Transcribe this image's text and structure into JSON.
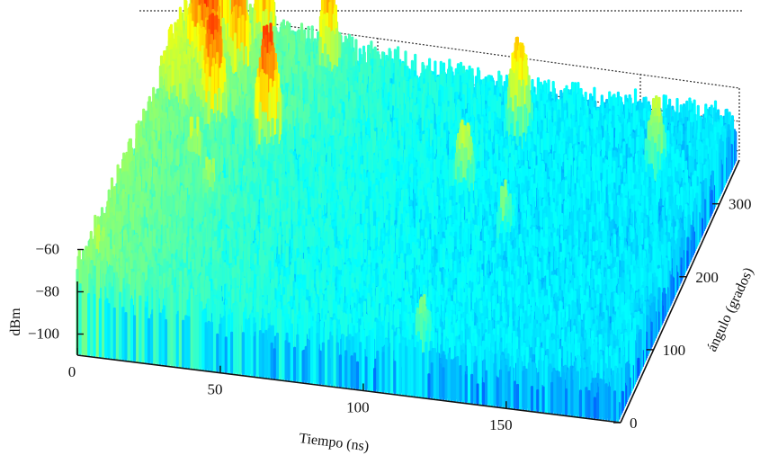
{
  "chart_data": {
    "type": "surface",
    "title": "",
    "xlabel": "Tiempo (ns)",
    "ylabel": "ángulo (grados)",
    "zlabel": "dBm",
    "x_ticks": [
      0,
      50,
      100,
      150
    ],
    "y_ticks": [
      0,
      100,
      200,
      300
    ],
    "z_ticks": [
      -100,
      -80,
      -60
    ],
    "x_tick_labels": [
      "0",
      "50",
      "100",
      "150"
    ],
    "y_tick_labels": [
      "0",
      "100",
      "200",
      "300"
    ],
    "z_tick_labels": [
      "−100",
      "−80",
      "−60"
    ],
    "xlim": [
      0,
      190
    ],
    "ylim": [
      0,
      360
    ],
    "zlim": [
      -110,
      -40
    ],
    "colormap": "jet",
    "grid": true,
    "peaks": [
      {
        "x": 4,
        "y": 30,
        "z": -80
      },
      {
        "x": 10,
        "y": 20,
        "z": -85
      },
      {
        "x": 8,
        "y": 300,
        "z": -62
      },
      {
        "x": 10,
        "y": 330,
        "z": -55
      },
      {
        "x": 14,
        "y": 280,
        "z": -60
      },
      {
        "x": 20,
        "y": 240,
        "z": -62
      },
      {
        "x": 22,
        "y": 300,
        "z": -65
      },
      {
        "x": 26,
        "y": 340,
        "z": -66
      },
      {
        "x": 40,
        "y": 230,
        "z": -62
      },
      {
        "x": 50,
        "y": 330,
        "z": -70
      },
      {
        "x": 20,
        "y": 180,
        "z": -80
      },
      {
        "x": 30,
        "y": 140,
        "z": -82
      },
      {
        "x": 110,
        "y": 220,
        "z": -80
      },
      {
        "x": 120,
        "y": 300,
        "z": -72
      },
      {
        "x": 130,
        "y": 170,
        "z": -85
      },
      {
        "x": 120,
        "y": 10,
        "z": -85
      },
      {
        "x": 170,
        "y": 280,
        "z": -80
      }
    ]
  }
}
